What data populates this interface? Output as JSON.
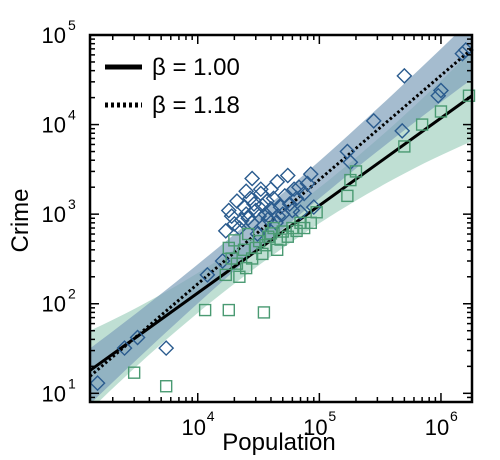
{
  "chart_data": {
    "type": "scatter",
    "xlabel": "Population",
    "ylabel": "Crime",
    "x_scale": "log",
    "y_scale": "log",
    "xlim": [
      1300,
      1800000
    ],
    "ylim": [
      8,
      100000
    ],
    "x_ticks": [
      {
        "value": 10000,
        "base": "10",
        "exp": "4"
      },
      {
        "value": 100000,
        "base": "10",
        "exp": "5"
      },
      {
        "value": 1000000,
        "base": "10",
        "exp": "6"
      }
    ],
    "y_ticks": [
      {
        "value": 10,
        "base": "10",
        "exp": "1"
      },
      {
        "value": 100,
        "base": "10",
        "exp": "2"
      },
      {
        "value": 1000,
        "base": "10",
        "exp": "3"
      },
      {
        "value": 10000,
        "base": "10",
        "exp": "4"
      },
      {
        "value": 100000,
        "base": "10",
        "exp": "5"
      }
    ],
    "grid": false,
    "legend_position": "top-left",
    "colors": {
      "blue_series": "#2a5b8e",
      "green_series": "#4a9a72",
      "blue_band": "#7f9fbb",
      "green_band": "#a9d4c4",
      "fit_line": "#000000"
    },
    "fits": [
      {
        "label": "β = 1.00",
        "style": "solid",
        "beta": 1.0,
        "x_start": 1300,
        "y_start": 18,
        "x_end": 1800000,
        "y_end": 21000
      },
      {
        "label": "β = 1.18",
        "style": "dotted",
        "beta": 1.18,
        "x_start": 1300,
        "y_start": 15.5,
        "x_end": 1800000,
        "y_end": 70000
      }
    ],
    "series": [
      {
        "marker": "diamond",
        "color_key": "blue_series",
        "points": [
          [
            1500,
            13
          ],
          [
            2500,
            32
          ],
          [
            3200,
            42
          ],
          [
            5500,
            32
          ],
          [
            12000,
            210
          ],
          [
            16000,
            300
          ],
          [
            17000,
            650
          ],
          [
            18000,
            1100
          ],
          [
            19000,
            950
          ],
          [
            20000,
            780
          ],
          [
            21000,
            1400
          ],
          [
            22000,
            700
          ],
          [
            23000,
            850
          ],
          [
            24000,
            1200
          ],
          [
            25000,
            1000
          ],
          [
            26000,
            900
          ],
          [
            27000,
            1500
          ],
          [
            28000,
            800
          ],
          [
            29000,
            1300
          ],
          [
            30000,
            1100
          ],
          [
            31000,
            600
          ],
          [
            32000,
            950
          ],
          [
            33000,
            1700
          ],
          [
            34000,
            1250
          ],
          [
            35000,
            750
          ],
          [
            36000,
            1000
          ],
          [
            37000,
            1400
          ],
          [
            38000,
            880
          ],
          [
            40000,
            1150
          ],
          [
            42000,
            1500
          ],
          [
            44000,
            800
          ],
          [
            45000,
            2300
          ],
          [
            46000,
            950
          ],
          [
            48000,
            1200
          ],
          [
            50000,
            1000
          ],
          [
            52000,
            1600
          ],
          [
            55000,
            2700
          ],
          [
            57000,
            1300
          ],
          [
            60000,
            1100
          ],
          [
            62000,
            1900
          ],
          [
            65000,
            1500
          ],
          [
            68000,
            2000
          ],
          [
            70000,
            1050
          ],
          [
            75000,
            1700
          ],
          [
            80000,
            2200
          ],
          [
            85000,
            2800
          ],
          [
            90000,
            1200
          ],
          [
            28000,
            2500
          ],
          [
            25000,
            1800
          ],
          [
            40000,
            1900
          ],
          [
            33000,
            1900
          ],
          [
            170000,
            5000
          ],
          [
            180000,
            3800
          ],
          [
            280000,
            11000
          ],
          [
            480000,
            8500
          ],
          [
            500000,
            35000
          ],
          [
            950000,
            21000
          ],
          [
            1000000,
            24000
          ],
          [
            1500000,
            62000
          ],
          [
            1600000,
            68000
          ]
        ]
      },
      {
        "marker": "square",
        "color_key": "green_series",
        "points": [
          [
            3000,
            17
          ],
          [
            5500,
            12
          ],
          [
            11500,
            85
          ],
          [
            18000,
            85
          ],
          [
            35000,
            80
          ],
          [
            17000,
            210
          ],
          [
            18000,
            420
          ],
          [
            19000,
            320
          ],
          [
            20000,
            510
          ],
          [
            21000,
            280
          ],
          [
            22000,
            200
          ],
          [
            24000,
            400
          ],
          [
            25000,
            250
          ],
          [
            26000,
            600
          ],
          [
            28000,
            320
          ],
          [
            30000,
            420
          ],
          [
            32000,
            500
          ],
          [
            34000,
            360
          ],
          [
            36000,
            450
          ],
          [
            38000,
            560
          ],
          [
            40000,
            610
          ],
          [
            42000,
            700
          ],
          [
            45000,
            400
          ],
          [
            48000,
            520
          ],
          [
            50000,
            640
          ],
          [
            55000,
            560
          ],
          [
            60000,
            700
          ],
          [
            65000,
            650
          ],
          [
            70000,
            800
          ],
          [
            75000,
            700
          ],
          [
            85000,
            800
          ],
          [
            95000,
            1050
          ],
          [
            170000,
            1600
          ],
          [
            180000,
            2400
          ],
          [
            200000,
            3000
          ],
          [
            500000,
            5700
          ],
          [
            700000,
            10000
          ],
          [
            1000000,
            14000
          ],
          [
            1700000,
            21000
          ]
        ]
      }
    ]
  }
}
